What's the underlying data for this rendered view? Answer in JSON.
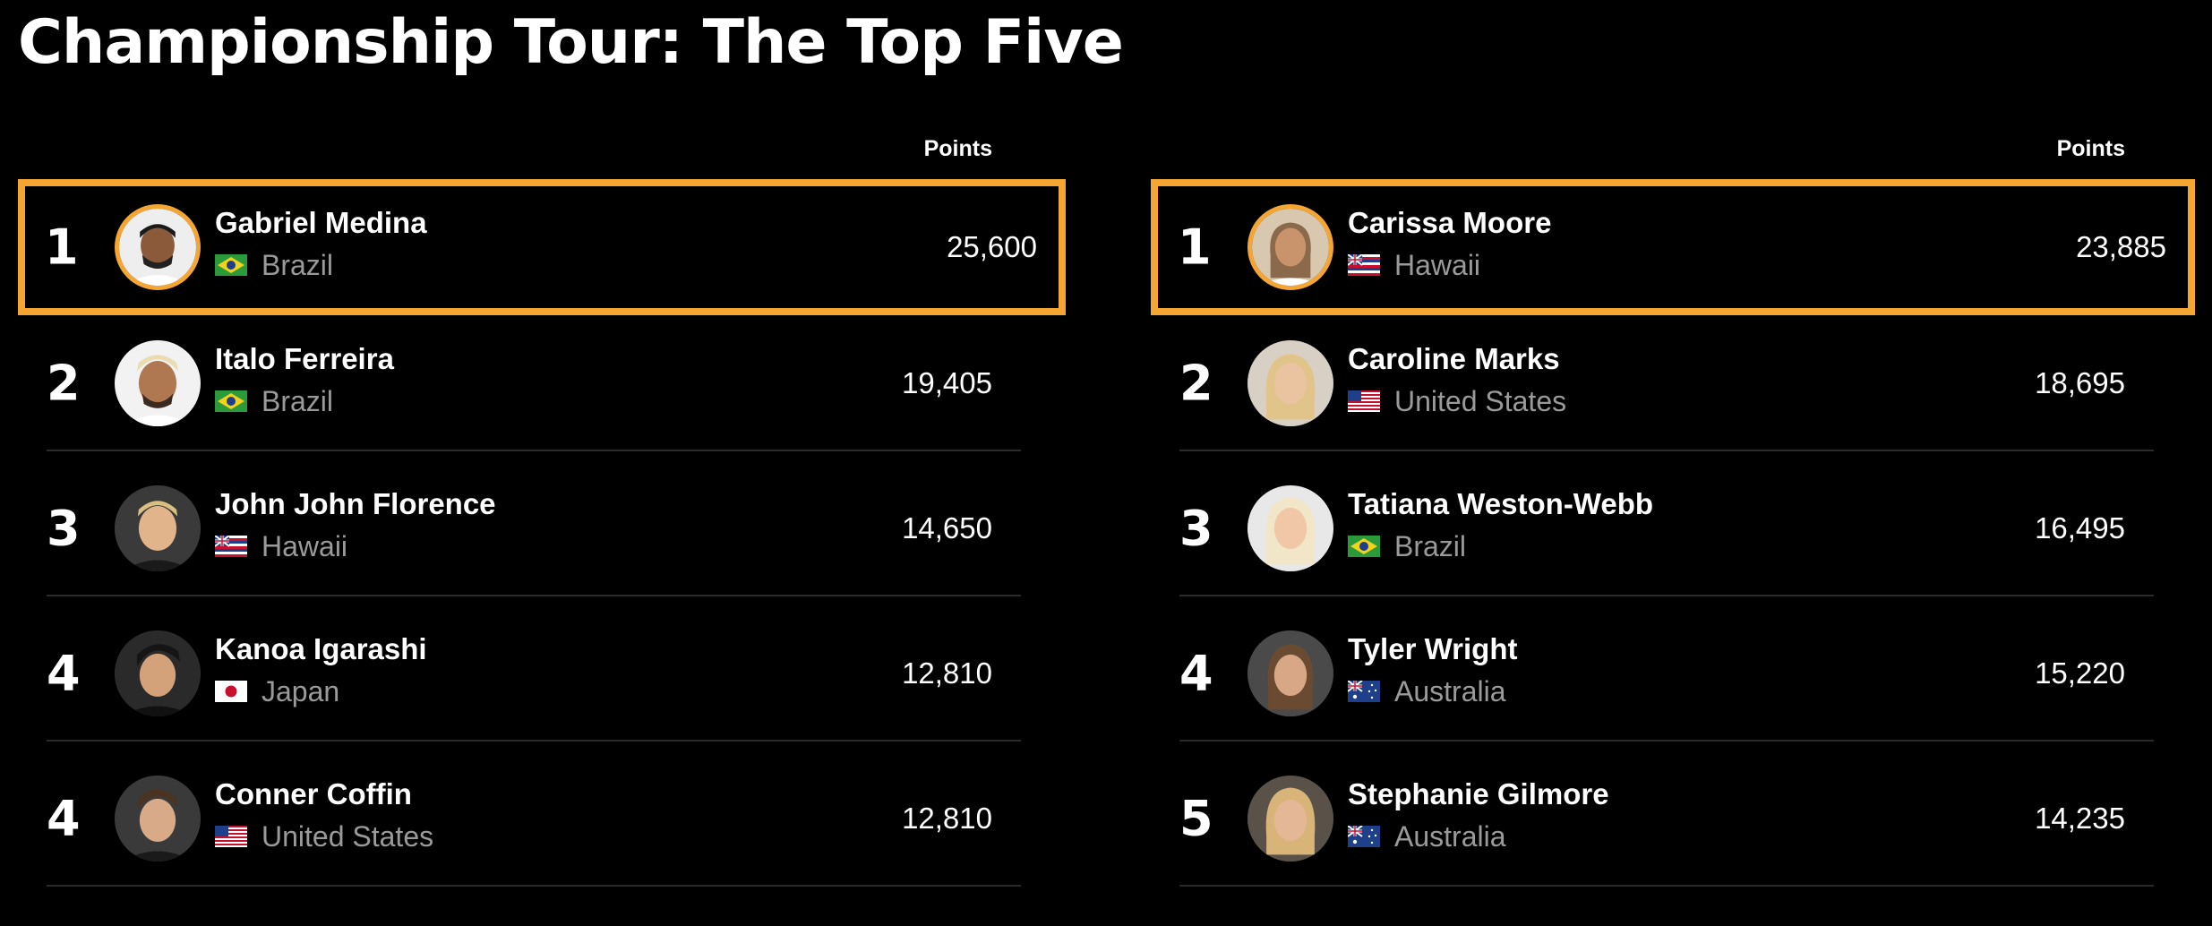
{
  "page": {
    "title": "Championship Tour: The Top Five"
  },
  "colors": {
    "background": "#000000",
    "highlight": "#f5a532",
    "text": "#ffffff",
    "muted": "#9a9a9a",
    "divider": "#2a2a2a"
  },
  "men": {
    "points_header": "Points",
    "rows": [
      {
        "rank": "1",
        "name": "Gabriel Medina",
        "country": "Brazil",
        "flag": "brazil-flag-icon",
        "points": "25,600",
        "leader": true
      },
      {
        "rank": "2",
        "name": "Italo Ferreira",
        "country": "Brazil",
        "flag": "brazil-flag-icon",
        "points": "19,405",
        "leader": false
      },
      {
        "rank": "3",
        "name": "John John Florence",
        "country": "Hawaii",
        "flag": "hawaii-flag-icon",
        "points": "14,650",
        "leader": false
      },
      {
        "rank": "4",
        "name": "Kanoa Igarashi",
        "country": "Japan",
        "flag": "japan-flag-icon",
        "points": "12,810",
        "leader": false
      },
      {
        "rank": "4",
        "name": "Conner Coffin",
        "country": "United States",
        "flag": "usa-flag-icon",
        "points": "12,810",
        "leader": false
      }
    ]
  },
  "women": {
    "points_header": "Points",
    "rows": [
      {
        "rank": "1",
        "name": "Carissa Moore",
        "country": "Hawaii",
        "flag": "hawaii-flag-icon",
        "points": "23,885",
        "leader": true
      },
      {
        "rank": "2",
        "name": "Caroline Marks",
        "country": "United States",
        "flag": "usa-flag-icon",
        "points": "18,695",
        "leader": false
      },
      {
        "rank": "3",
        "name": "Tatiana Weston-Webb",
        "country": "Brazil",
        "flag": "brazil-flag-icon",
        "points": "16,495",
        "leader": false
      },
      {
        "rank": "4",
        "name": "Tyler Wright",
        "country": "Australia",
        "flag": "australia-flag-icon",
        "points": "15,220",
        "leader": false
      },
      {
        "rank": "5",
        "name": "Stephanie Gilmore",
        "country": "Australia",
        "flag": "australia-flag-icon",
        "points": "14,235",
        "leader": false
      }
    ]
  }
}
